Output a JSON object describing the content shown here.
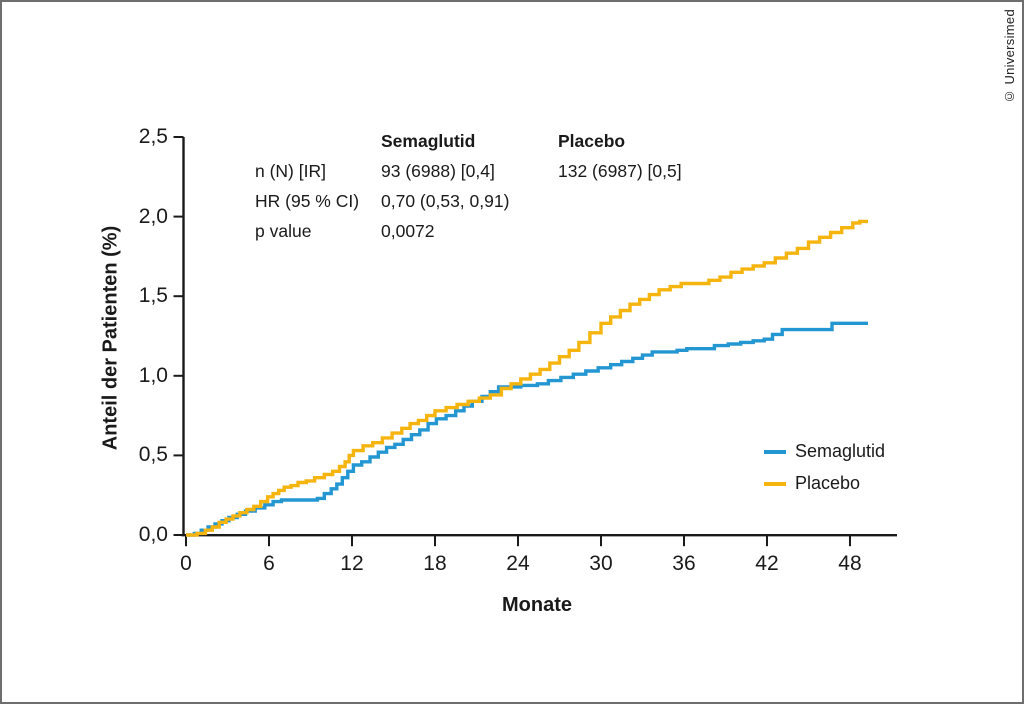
{
  "copyright": "© Universimed",
  "colors": {
    "axis": "#1a1a1a",
    "frame_border": "#6e6e6e",
    "semaglutid": "#2497D3",
    "placebo": "#F6B40E"
  },
  "stats": {
    "header": {
      "col1": "Semaglutid",
      "col2": "Placebo"
    },
    "rows": [
      {
        "label": "n (N) [IR]",
        "semaglutid": "93 (6988) [0,4]",
        "placebo": "132 (6987) [0,5]"
      },
      {
        "label": "HR (95 % CI)",
        "semaglutid": "0,70 (0,53, 0,91)",
        "placebo": ""
      },
      {
        "label": "p value",
        "semaglutid": "0,0072",
        "placebo": ""
      }
    ]
  },
  "chart_data": {
    "type": "line",
    "subtype": "kaplan-meier-step-cumulative-incidence",
    "title": "",
    "xlabel": "Monate",
    "ylabel": "Anteil der Patienten (%)",
    "xlim": [
      0,
      51.5
    ],
    "ylim": [
      0,
      2.5
    ],
    "grid": false,
    "legend_position": "right-lower",
    "x_ticks": [
      0,
      6,
      12,
      18,
      24,
      30,
      36,
      42,
      48
    ],
    "y_tick_values": [
      0,
      0.5,
      1.0,
      1.5,
      2.0,
      2.5
    ],
    "y_tick_labels": [
      "0,0",
      "0,5",
      "1,0",
      "1,5",
      "2,0",
      "2,5"
    ],
    "series": [
      {
        "name": "Semaglutid",
        "color": "#2497D3",
        "final_value": 1.33,
        "points": [
          [
            0,
            0
          ],
          [
            0.6,
            0.01
          ],
          [
            1.1,
            0.03
          ],
          [
            1.6,
            0.05
          ],
          [
            2.1,
            0.07
          ],
          [
            2.6,
            0.09
          ],
          [
            3.1,
            0.11
          ],
          [
            3.7,
            0.13
          ],
          [
            4.3,
            0.15
          ],
          [
            5.0,
            0.17
          ],
          [
            5.7,
            0.19
          ],
          [
            6.3,
            0.21
          ],
          [
            6.9,
            0.22
          ],
          [
            9.5,
            0.23
          ],
          [
            10.0,
            0.26
          ],
          [
            10.5,
            0.29
          ],
          [
            10.9,
            0.32
          ],
          [
            11.3,
            0.36
          ],
          [
            11.7,
            0.4
          ],
          [
            12.1,
            0.44
          ],
          [
            12.7,
            0.46
          ],
          [
            13.3,
            0.49
          ],
          [
            13.9,
            0.52
          ],
          [
            14.5,
            0.55
          ],
          [
            15.1,
            0.57
          ],
          [
            15.7,
            0.6
          ],
          [
            16.3,
            0.63
          ],
          [
            16.9,
            0.66
          ],
          [
            17.5,
            0.7
          ],
          [
            18.1,
            0.73
          ],
          [
            18.8,
            0.75
          ],
          [
            19.5,
            0.78
          ],
          [
            20.1,
            0.81
          ],
          [
            20.7,
            0.84
          ],
          [
            21.4,
            0.87
          ],
          [
            22.0,
            0.9
          ],
          [
            22.6,
            0.93
          ],
          [
            24.2,
            0.94
          ],
          [
            25.4,
            0.95
          ],
          [
            26.2,
            0.97
          ],
          [
            27.1,
            0.99
          ],
          [
            28.0,
            1.01
          ],
          [
            28.9,
            1.03
          ],
          [
            29.8,
            1.05
          ],
          [
            30.7,
            1.07
          ],
          [
            31.5,
            1.09
          ],
          [
            32.3,
            1.11
          ],
          [
            33.0,
            1.13
          ],
          [
            33.7,
            1.15
          ],
          [
            35.5,
            1.16
          ],
          [
            36.2,
            1.17
          ],
          [
            38.2,
            1.19
          ],
          [
            39.2,
            1.2
          ],
          [
            40.1,
            1.21
          ],
          [
            41.0,
            1.22
          ],
          [
            41.8,
            1.23
          ],
          [
            42.4,
            1.26
          ],
          [
            43.1,
            1.29
          ],
          [
            46.7,
            1.33
          ],
          [
            49.3,
            1.33
          ]
        ]
      },
      {
        "name": "Placebo",
        "color": "#F6B40E",
        "final_value": 1.97,
        "points": [
          [
            0,
            0
          ],
          [
            0.8,
            0.01
          ],
          [
            1.4,
            0.03
          ],
          [
            1.9,
            0.05
          ],
          [
            2.4,
            0.08
          ],
          [
            2.9,
            0.1
          ],
          [
            3.4,
            0.12
          ],
          [
            3.9,
            0.14
          ],
          [
            4.4,
            0.16
          ],
          [
            4.9,
            0.18
          ],
          [
            5.4,
            0.21
          ],
          [
            5.9,
            0.24
          ],
          [
            6.3,
            0.26
          ],
          [
            6.7,
            0.28
          ],
          [
            7.1,
            0.3
          ],
          [
            7.6,
            0.31
          ],
          [
            8.1,
            0.33
          ],
          [
            8.7,
            0.34
          ],
          [
            9.3,
            0.36
          ],
          [
            10.0,
            0.38
          ],
          [
            10.6,
            0.4
          ],
          [
            11.1,
            0.43
          ],
          [
            11.5,
            0.46
          ],
          [
            11.8,
            0.5
          ],
          [
            12.1,
            0.53
          ],
          [
            12.8,
            0.56
          ],
          [
            13.5,
            0.58
          ],
          [
            14.2,
            0.61
          ],
          [
            14.9,
            0.64
          ],
          [
            15.6,
            0.67
          ],
          [
            16.2,
            0.7
          ],
          [
            16.8,
            0.72
          ],
          [
            17.4,
            0.75
          ],
          [
            18.0,
            0.78
          ],
          [
            18.8,
            0.8
          ],
          [
            19.6,
            0.82
          ],
          [
            20.4,
            0.84
          ],
          [
            21.2,
            0.86
          ],
          [
            22.0,
            0.88
          ],
          [
            22.8,
            0.92
          ],
          [
            23.5,
            0.95
          ],
          [
            24.2,
            0.98
          ],
          [
            24.9,
            1.01
          ],
          [
            25.6,
            1.04
          ],
          [
            26.3,
            1.08
          ],
          [
            27.0,
            1.12
          ],
          [
            27.7,
            1.16
          ],
          [
            28.4,
            1.21
          ],
          [
            29.2,
            1.27
          ],
          [
            30.0,
            1.33
          ],
          [
            30.7,
            1.37
          ],
          [
            31.4,
            1.41
          ],
          [
            32.1,
            1.45
          ],
          [
            32.8,
            1.48
          ],
          [
            33.5,
            1.51
          ],
          [
            34.2,
            1.54
          ],
          [
            35.0,
            1.56
          ],
          [
            35.8,
            1.58
          ],
          [
            37.8,
            1.6
          ],
          [
            38.6,
            1.62
          ],
          [
            39.4,
            1.65
          ],
          [
            40.2,
            1.67
          ],
          [
            41.0,
            1.69
          ],
          [
            41.8,
            1.71
          ],
          [
            42.6,
            1.74
          ],
          [
            43.4,
            1.77
          ],
          [
            44.2,
            1.8
          ],
          [
            45.0,
            1.84
          ],
          [
            45.8,
            1.87
          ],
          [
            46.6,
            1.9
          ],
          [
            47.4,
            1.93
          ],
          [
            48.2,
            1.96
          ],
          [
            48.7,
            1.97
          ],
          [
            49.3,
            1.97
          ]
        ]
      }
    ]
  }
}
